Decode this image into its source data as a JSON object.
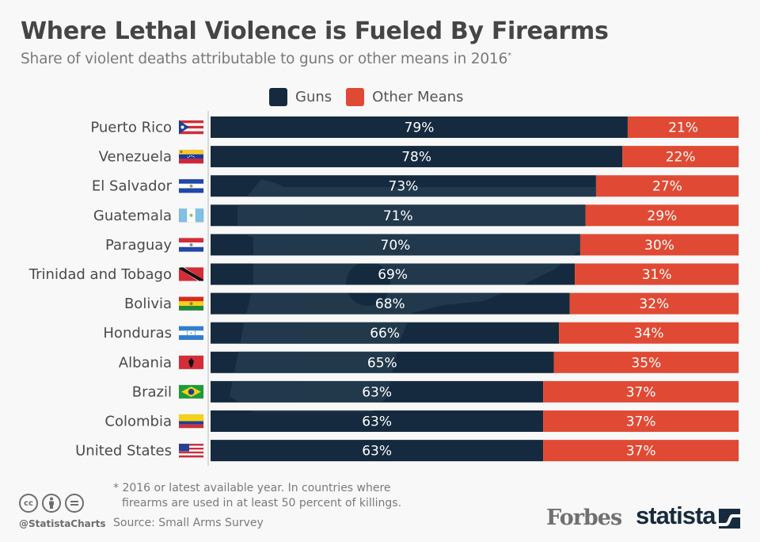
{
  "header": {
    "title": "Where Lethal Violence is Fueled By Firearms",
    "subtitle": "Share of violent deaths attributable to guns or other means in 2016",
    "subtitle_mark": "*"
  },
  "colors": {
    "guns": "#152a3e",
    "other": "#e04a34",
    "watermark": "#2e4457",
    "axis": "#cccccc"
  },
  "legend": [
    {
      "label": "Guns",
      "color": "#152a3e"
    },
    {
      "label": "Other Means",
      "color": "#e04a34"
    }
  ],
  "chart_data": {
    "type": "bar",
    "orientation": "horizontal",
    "stacked": true,
    "normalized_percent": true,
    "title": "Where Lethal Violence is Fueled By Firearms",
    "subtitle": "Share of violent deaths attributable to guns or other means in 2016*",
    "xlabel": "",
    "ylabel": "",
    "xlim": [
      0,
      100
    ],
    "grid": false,
    "legend_position": "top-center",
    "categories": [
      "Puerto Rico",
      "Venezuela",
      "El Salvador",
      "Guatemala",
      "Paraguay",
      "Trinidad and Tobago",
      "Bolivia",
      "Honduras",
      "Albania",
      "Brazil",
      "Colombia",
      "United States"
    ],
    "flags": [
      "flag-puerto-rico",
      "flag-venezuela",
      "flag-el-salvador",
      "flag-guatemala",
      "flag-paraguay",
      "flag-trinidad-and-tobago",
      "flag-bolivia",
      "flag-honduras",
      "flag-albania",
      "flag-brazil",
      "flag-colombia",
      "flag-united-states"
    ],
    "series": [
      {
        "name": "Guns",
        "values": [
          79,
          78,
          73,
          71,
          70,
          69,
          68,
          66,
          65,
          63,
          63,
          63
        ]
      },
      {
        "name": "Other Means",
        "values": [
          21,
          22,
          27,
          29,
          30,
          31,
          32,
          34,
          35,
          37,
          37,
          37
        ]
      }
    ],
    "value_suffix": "%"
  },
  "footer": {
    "footnote_line1": "* 2016 or latest available year. In countries where",
    "footnote_line2": "firearms are used in at least 50 percent of killings.",
    "source": "Source: Small Arms Survey",
    "handle": "@StatistaCharts",
    "license_icons": [
      "cc-icon",
      "attribution-icon",
      "no-derivatives-icon"
    ],
    "partner_logo": "Forbes",
    "brand_logo": "statista"
  }
}
